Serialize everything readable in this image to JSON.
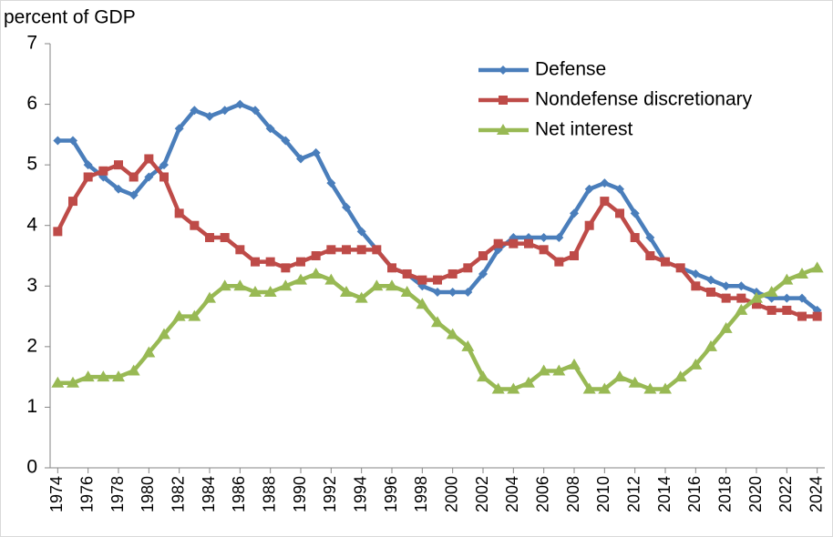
{
  "chart_data": {
    "type": "line",
    "y_label": "percent of GDP",
    "x": [
      1974,
      1975,
      1976,
      1977,
      1978,
      1979,
      1980,
      1981,
      1982,
      1983,
      1984,
      1985,
      1986,
      1987,
      1988,
      1989,
      1990,
      1991,
      1992,
      1993,
      1994,
      1995,
      1996,
      1997,
      1998,
      1999,
      2000,
      2001,
      2002,
      2003,
      2004,
      2005,
      2006,
      2007,
      2008,
      2009,
      2010,
      2011,
      2012,
      2013,
      2014,
      2015,
      2016,
      2017,
      2018,
      2019,
      2020,
      2021,
      2022,
      2023,
      2024
    ],
    "xlim": [
      1973.5,
      2024.5
    ],
    "xticks": [
      1974,
      1976,
      1978,
      1980,
      1982,
      1984,
      1986,
      1988,
      1990,
      1992,
      1994,
      1996,
      1998,
      2000,
      2002,
      2004,
      2006,
      2008,
      2010,
      2012,
      2014,
      2016,
      2018,
      2020,
      2022,
      2024
    ],
    "ylim": [
      0,
      7
    ],
    "yticks": [
      0,
      1,
      2,
      3,
      4,
      5,
      6,
      7
    ],
    "grid": false,
    "legend": "top right",
    "series": [
      {
        "name": "Defense",
        "color": "#4a7ebb",
        "marker": "diamond",
        "values": [
          5.4,
          5.4,
          5.0,
          4.8,
          4.6,
          4.5,
          4.8,
          5.0,
          5.6,
          5.9,
          5.8,
          5.9,
          6.0,
          5.9,
          5.6,
          5.4,
          5.1,
          5.2,
          4.7,
          4.3,
          3.9,
          3.6,
          3.3,
          3.2,
          3.0,
          2.9,
          2.9,
          2.9,
          3.2,
          3.6,
          3.8,
          3.8,
          3.8,
          3.8,
          4.2,
          4.6,
          4.7,
          4.6,
          4.2,
          3.8,
          3.4,
          3.3,
          3.2,
          3.1,
          3.0,
          3.0,
          2.9,
          2.8,
          2.8,
          2.8,
          2.6
        ]
      },
      {
        "name": "Nondefense discretionary",
        "color": "#be4b48",
        "marker": "square",
        "values": [
          3.9,
          4.4,
          4.8,
          4.9,
          5.0,
          4.8,
          5.1,
          4.8,
          4.2,
          4.0,
          3.8,
          3.8,
          3.6,
          3.4,
          3.4,
          3.3,
          3.4,
          3.5,
          3.6,
          3.6,
          3.6,
          3.6,
          3.3,
          3.2,
          3.1,
          3.1,
          3.2,
          3.3,
          3.5,
          3.7,
          3.7,
          3.7,
          3.6,
          3.4,
          3.5,
          4.0,
          4.4,
          4.2,
          3.8,
          3.5,
          3.4,
          3.3,
          3.0,
          2.9,
          2.8,
          2.8,
          2.7,
          2.6,
          2.6,
          2.5,
          2.5
        ]
      },
      {
        "name": "Net interest",
        "color": "#98b954",
        "marker": "triangle",
        "values": [
          1.4,
          1.4,
          1.5,
          1.5,
          1.5,
          1.6,
          1.9,
          2.2,
          2.5,
          2.5,
          2.8,
          3.0,
          3.0,
          2.9,
          2.9,
          3.0,
          3.1,
          3.2,
          3.1,
          2.9,
          2.8,
          3.0,
          3.0,
          2.9,
          2.7,
          2.4,
          2.2,
          2.0,
          1.5,
          1.3,
          1.3,
          1.4,
          1.6,
          1.6,
          1.7,
          1.3,
          1.3,
          1.5,
          1.4,
          1.3,
          1.3,
          1.5,
          1.7,
          2.0,
          2.3,
          2.6,
          2.8,
          2.9,
          3.1,
          3.2,
          3.3
        ]
      }
    ]
  }
}
